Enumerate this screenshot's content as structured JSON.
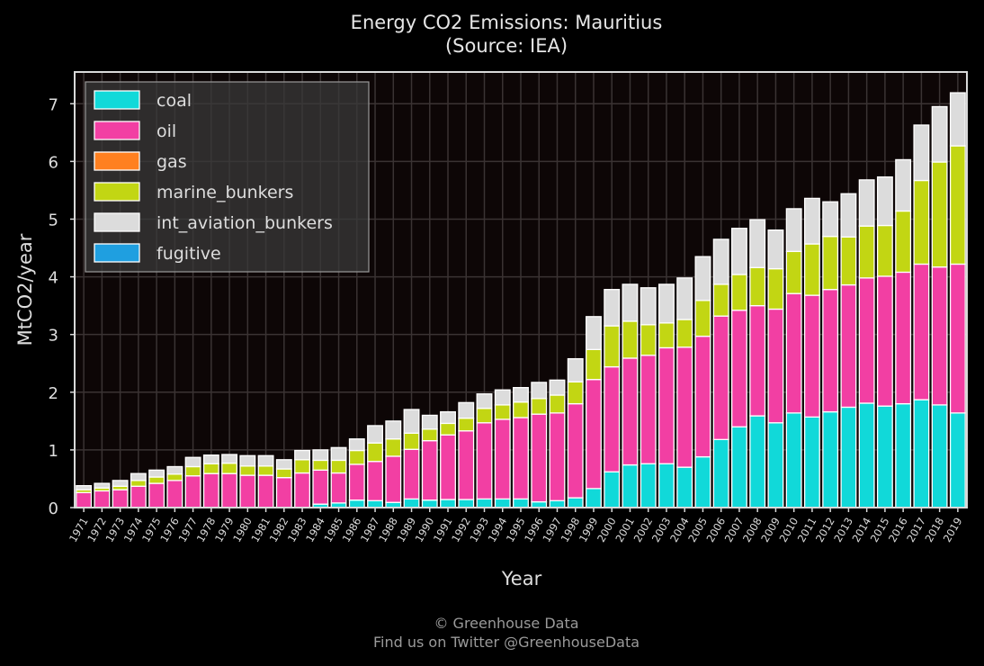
{
  "chart_data": {
    "type": "bar",
    "stacked": true,
    "title": "Energy CO2 Emissions: Mauritius",
    "subtitle": "(Source: IEA)",
    "xlabel": "Year",
    "ylabel": "MtCO2/year",
    "ylim": [
      0,
      7.55
    ],
    "yticks": [
      0,
      1,
      2,
      3,
      4,
      5,
      6,
      7
    ],
    "grid": true,
    "legend_position": "top-left",
    "categories": [
      "1971",
      "1972",
      "1973",
      "1974",
      "1975",
      "1976",
      "1977",
      "1978",
      "1979",
      "1980",
      "1981",
      "1982",
      "1983",
      "1984",
      "1985",
      "1986",
      "1987",
      "1988",
      "1989",
      "1990",
      "1991",
      "1992",
      "1993",
      "1994",
      "1995",
      "1996",
      "1997",
      "1998",
      "1999",
      "2000",
      "2001",
      "2002",
      "2003",
      "2004",
      "2005",
      "2006",
      "2007",
      "2008",
      "2009",
      "2010",
      "2011",
      "2012",
      "2013",
      "2014",
      "2015",
      "2016",
      "2017",
      "2018",
      "2019"
    ],
    "series": [
      {
        "name": "coal",
        "color": "#11d9d9",
        "values": [
          0,
          0,
          0,
          0,
          0,
          0,
          0,
          0,
          0,
          0,
          0,
          0,
          0,
          0.06,
          0.08,
          0.13,
          0.12,
          0.09,
          0.15,
          0.13,
          0.14,
          0.14,
          0.15,
          0.15,
          0.15,
          0.1,
          0.12,
          0.17,
          0.33,
          0.62,
          0.74,
          0.76,
          0.76,
          0.7,
          0.88,
          1.18,
          1.4,
          1.59,
          1.47,
          1.64,
          1.57,
          1.66,
          1.74,
          1.81,
          1.76,
          1.8,
          1.87,
          1.78,
          1.64
        ]
      },
      {
        "name": "oil",
        "color": "#f23fa3",
        "values": [
          0.26,
          0.29,
          0.31,
          0.37,
          0.42,
          0.47,
          0.55,
          0.59,
          0.59,
          0.56,
          0.56,
          0.52,
          0.6,
          0.59,
          0.52,
          0.62,
          0.68,
          0.8,
          0.86,
          1.03,
          1.12,
          1.19,
          1.32,
          1.38,
          1.41,
          1.52,
          1.52,
          1.63,
          1.89,
          1.82,
          1.85,
          1.88,
          2.01,
          2.08,
          2.09,
          2.14,
          2.02,
          1.91,
          1.97,
          2.07,
          2.11,
          2.12,
          2.12,
          2.17,
          2.25,
          2.28,
          2.35,
          2.39,
          2.58
        ]
      },
      {
        "name": "gas",
        "color": "#ff8020",
        "values": [
          0,
          0,
          0,
          0,
          0,
          0,
          0,
          0,
          0,
          0,
          0,
          0,
          0,
          0,
          0,
          0,
          0,
          0,
          0,
          0,
          0,
          0,
          0,
          0,
          0,
          0,
          0,
          0,
          0,
          0,
          0,
          0,
          0,
          0,
          0,
          0,
          0,
          0,
          0,
          0,
          0,
          0,
          0,
          0,
          0,
          0,
          0,
          0,
          0
        ]
      },
      {
        "name": "marine_bunkers",
        "color": "#c2d613",
        "values": [
          0.05,
          0.05,
          0.06,
          0.1,
          0.11,
          0.11,
          0.16,
          0.17,
          0.18,
          0.16,
          0.16,
          0.15,
          0.23,
          0.17,
          0.22,
          0.24,
          0.32,
          0.3,
          0.28,
          0.2,
          0.2,
          0.22,
          0.25,
          0.25,
          0.27,
          0.27,
          0.31,
          0.38,
          0.52,
          0.71,
          0.64,
          0.53,
          0.43,
          0.48,
          0.62,
          0.55,
          0.62,
          0.66,
          0.7,
          0.73,
          0.89,
          0.92,
          0.83,
          0.9,
          0.88,
          1.06,
          1.45,
          1.82,
          2.05
        ]
      },
      {
        "name": "int_aviation_bunkers",
        "color": "#dcdcdc",
        "values": [
          0.07,
          0.08,
          0.1,
          0.12,
          0.12,
          0.13,
          0.16,
          0.15,
          0.15,
          0.18,
          0.18,
          0.16,
          0.16,
          0.18,
          0.22,
          0.2,
          0.3,
          0.31,
          0.41,
          0.24,
          0.2,
          0.27,
          0.25,
          0.26,
          0.25,
          0.28,
          0.26,
          0.4,
          0.57,
          0.63,
          0.64,
          0.64,
          0.67,
          0.72,
          0.76,
          0.78,
          0.8,
          0.83,
          0.67,
          0.74,
          0.79,
          0.6,
          0.75,
          0.8,
          0.84,
          0.89,
          0.96,
          0.96,
          0.92
        ]
      },
      {
        "name": "fugitive",
        "color": "#1f9fe0",
        "values": [
          0,
          0,
          0,
          0,
          0,
          0,
          0,
          0,
          0,
          0,
          0,
          0,
          0,
          0,
          0,
          0,
          0,
          0,
          0,
          0,
          0,
          0,
          0,
          0,
          0,
          0,
          0,
          0,
          0,
          0,
          0,
          0,
          0,
          0,
          0,
          0,
          0,
          0,
          0,
          0,
          0,
          0,
          0,
          0,
          0,
          0,
          0,
          0,
          0
        ]
      }
    ]
  },
  "footer": {
    "line1": "© Greenhouse Data",
    "line2": "Find us on Twitter @GreenhouseData"
  },
  "colors": {
    "background": "#000000",
    "plot_background": "#0d0606",
    "grid": "#3a3333",
    "frame": "#d9d9d9"
  }
}
